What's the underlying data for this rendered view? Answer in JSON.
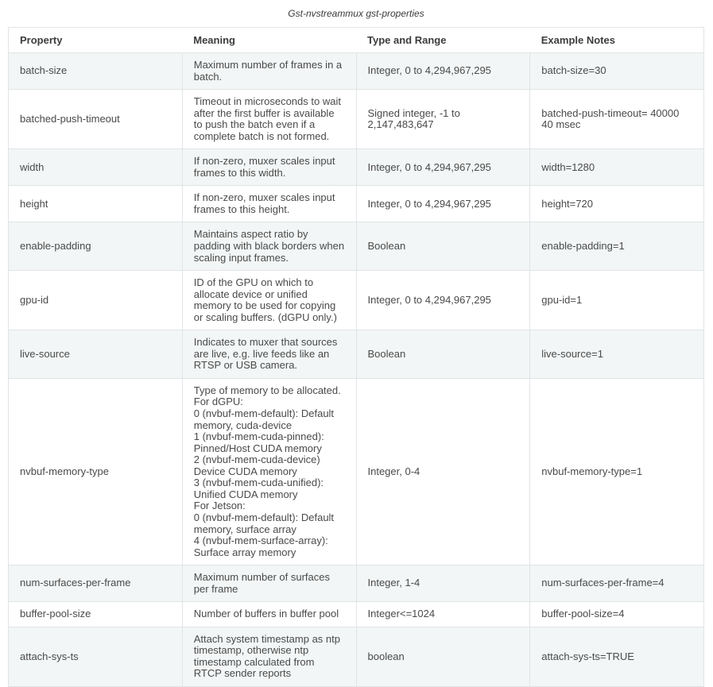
{
  "title": "Gst-nvstreammux gst-properties",
  "colors": {
    "row_shaded_bg": "#f3f6f6",
    "border": "#e1e4e5",
    "text": "#404040"
  },
  "table": {
    "columns": [
      "Property",
      "Meaning",
      "Type and Range",
      "Example Notes"
    ],
    "rows": [
      {
        "property": "batch-size",
        "meaning": "Maximum number of frames in a batch.",
        "type_and_range": "Integer, 0 to 4,294,967,295",
        "example_notes": "batch-size=30"
      },
      {
        "property": "batched-push-timeout",
        "meaning": "Timeout in microseconds to wait after the first buffer is available to push the batch even if a complete batch is not formed.",
        "type_and_range": "Signed integer, -1 to 2,147,483,647",
        "example_notes": "batched-push-timeout= 40000 40 msec"
      },
      {
        "property": "width",
        "meaning": "If non-zero, muxer scales input frames to this width.",
        "type_and_range": "Integer, 0 to 4,294,967,295",
        "example_notes": "width=1280"
      },
      {
        "property": "height",
        "meaning": "If non-zero, muxer scales input frames to this height.",
        "type_and_range": "Integer, 0 to 4,294,967,295",
        "example_notes": "height=720"
      },
      {
        "property": "enable-padding",
        "meaning": "Maintains aspect ratio by padding with black borders when scaling input frames.",
        "type_and_range": "Boolean",
        "example_notes": "enable-padding=1"
      },
      {
        "property": "gpu-id",
        "meaning": "ID of the GPU on which to allocate device or unified memory to be used for copying or scaling buffers. (dGPU only.)",
        "type_and_range": "Integer, 0 to 4,294,967,295",
        "example_notes": "gpu-id=1"
      },
      {
        "property": "live-source",
        "meaning": "Indicates to muxer that sources are live, e.g. live feeds like an RTSP or USB camera.",
        "type_and_range": "Boolean",
        "example_notes": "live-source=1"
      },
      {
        "property": "nvbuf-memory-type",
        "meaning": "Type of memory to be allocated.\nFor dGPU:\n0 (nvbuf-mem-default): Default memory, cuda-device\n1 (nvbuf-mem-cuda-pinned): Pinned/Host CUDA memory\n2 (nvbuf-mem-cuda-device) Device CUDA memory\n3 (nvbuf-mem-cuda-unified): Unified CUDA memory\nFor Jetson:\n0 (nvbuf-mem-default): Default memory, surface array\n4 (nvbuf-mem-surface-array): Surface array memory",
        "type_and_range": "Integer, 0-4",
        "example_notes": "nvbuf-memory-type=1"
      },
      {
        "property": "num-surfaces-per-frame",
        "meaning": "Maximum number of surfaces per frame",
        "type_and_range": "Integer, 1-4",
        "example_notes": "num-surfaces-per-frame=4"
      },
      {
        "property": "buffer-pool-size",
        "meaning": "Number of buffers in buffer pool",
        "type_and_range": "Integer<=1024",
        "example_notes": "buffer-pool-size=4"
      },
      {
        "property": "attach-sys-ts",
        "meaning": "Attach system timestamp as ntp timestamp, otherwise ntp timestamp calculated from RTCP sender reports",
        "type_and_range": "boolean",
        "example_notes": "attach-sys-ts=TRUE"
      }
    ]
  }
}
